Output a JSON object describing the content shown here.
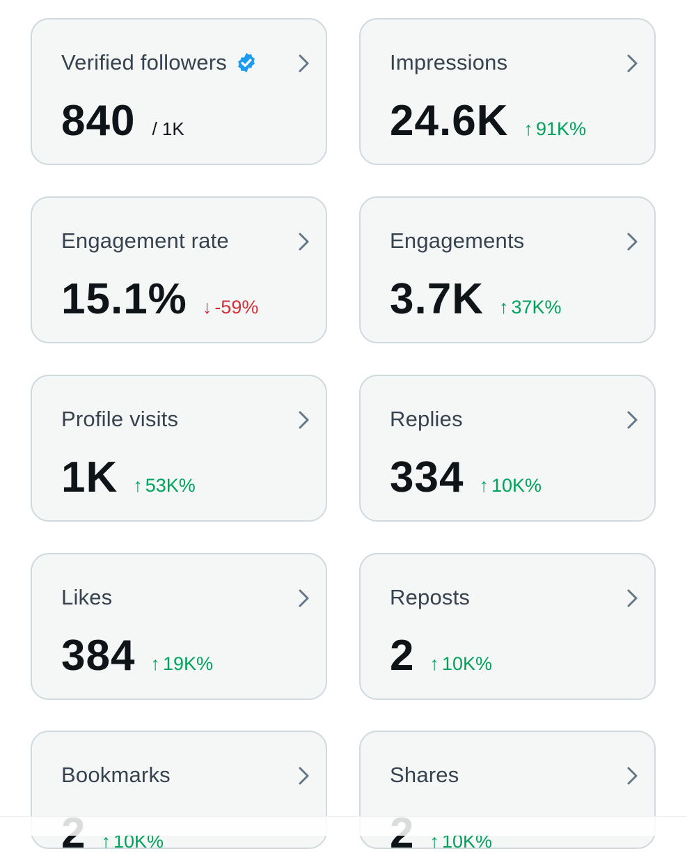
{
  "cards": [
    {
      "title": "Verified followers",
      "value": "840",
      "suffix": "/ 1K",
      "delta": "",
      "arrow": "",
      "trend": "none",
      "verified": true
    },
    {
      "title": "Impressions",
      "value": "24.6K",
      "suffix": "",
      "delta": "91K%",
      "arrow": "↑",
      "trend": "up"
    },
    {
      "title": "Engagement rate",
      "value": "15.1%",
      "suffix": "",
      "delta": "-59%",
      "arrow": "↓",
      "trend": "down"
    },
    {
      "title": "Engagements",
      "value": "3.7K",
      "suffix": "",
      "delta": "37K%",
      "arrow": "↑",
      "trend": "up"
    },
    {
      "title": "Profile visits",
      "value": "1K",
      "suffix": "",
      "delta": "53K%",
      "arrow": "↑",
      "trend": "up"
    },
    {
      "title": "Replies",
      "value": "334",
      "suffix": "",
      "delta": "10K%",
      "arrow": "↑",
      "trend": "up"
    },
    {
      "title": "Likes",
      "value": "384",
      "suffix": "",
      "delta": "19K%",
      "arrow": "↑",
      "trend": "up"
    },
    {
      "title": "Reposts",
      "value": "2",
      "suffix": "",
      "delta": "10K%",
      "arrow": "↑",
      "trend": "up"
    },
    {
      "title": "Bookmarks",
      "value": "2",
      "suffix": "",
      "delta": "10K%",
      "arrow": "↑",
      "trend": "up"
    },
    {
      "title": "Shares",
      "value": "2",
      "suffix": "",
      "delta": "10K%",
      "arrow": "↑",
      "trend": "up"
    }
  ],
  "icons": {
    "verified": "verified-badge-icon",
    "chevron": "chevron-right-icon"
  },
  "colors": {
    "up": "#00a35c",
    "down": "#d3303a",
    "verified": "#1d9bf0",
    "chevron": "#536471"
  }
}
